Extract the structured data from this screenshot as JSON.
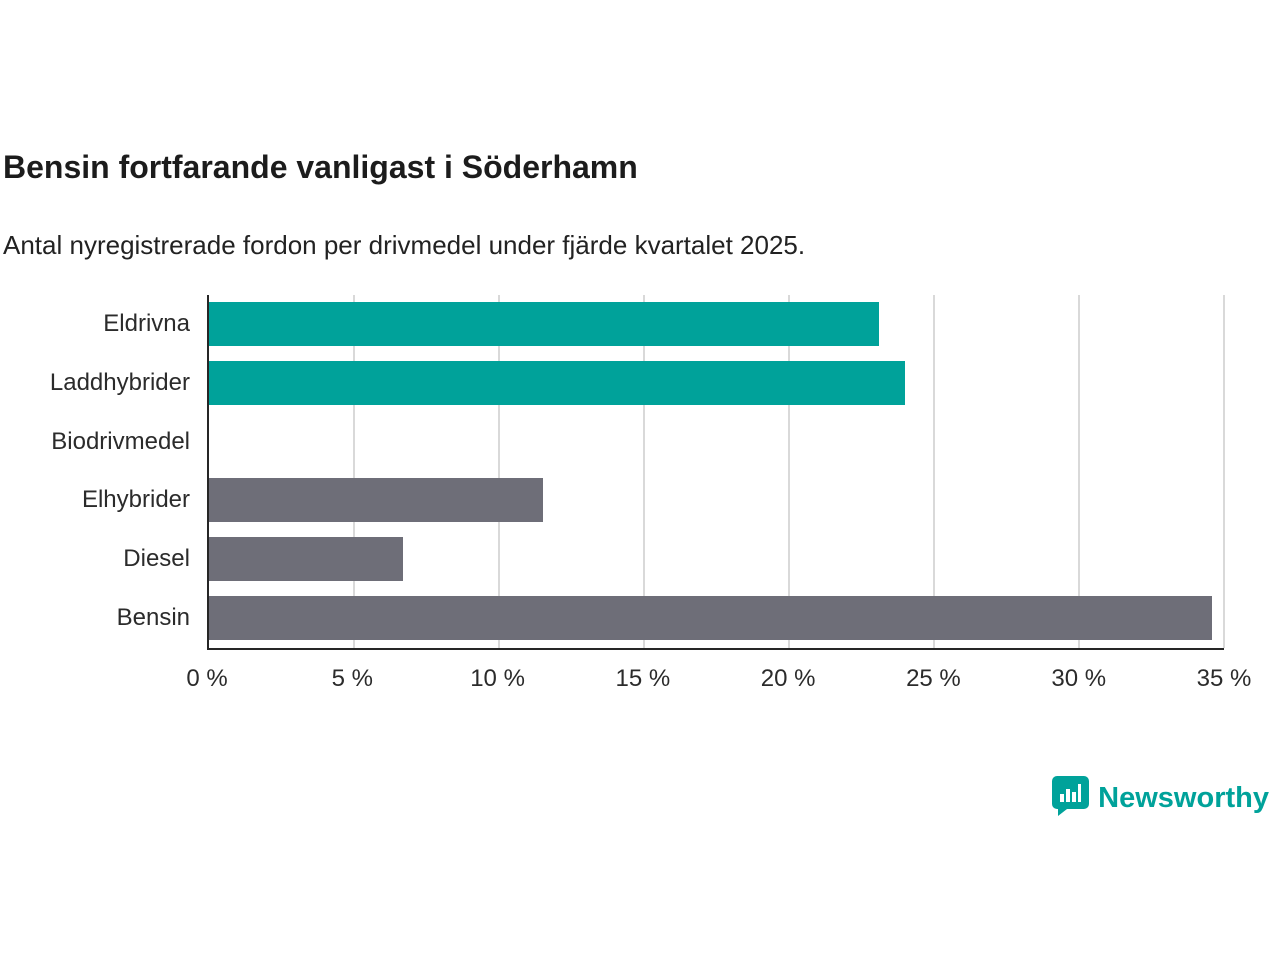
{
  "title": "Bensin fortfarande vanligast i Söderhamn",
  "subtitle": "Antal nyregistrerade fordon per drivmedel under fjärde kvartalet 2025.",
  "brand": {
    "name": "Newsworthy",
    "color": "#00a29a"
  },
  "chart_data": {
    "type": "bar",
    "orientation": "horizontal",
    "title": "Bensin fortfarande vanligast i Söderhamn",
    "subtitle": "Antal nyregistrerade fordon per drivmedel under fjärde kvartalet 2025.",
    "categories": [
      "Eldrivna",
      "Laddhybrider",
      "Biodrivmedel",
      "Elhybrider",
      "Diesel",
      "Bensin"
    ],
    "values": [
      23.1,
      24.0,
      0,
      11.5,
      6.7,
      34.6
    ],
    "unit": "%",
    "bar_colors": [
      "#00a29a",
      "#00a29a",
      "#6e6e78",
      "#6e6e78",
      "#6e6e78",
      "#6e6e78"
    ],
    "xlabel": "",
    "ylabel": "",
    "xlim": [
      0,
      35
    ],
    "x_ticks": [
      0,
      5,
      10,
      15,
      20,
      25,
      30,
      35
    ],
    "x_tick_labels": [
      "0 %",
      "5 %",
      "10 %",
      "15 %",
      "20 %",
      "25 %",
      "30 %",
      "35 %"
    ],
    "grid": true,
    "legend": false,
    "colors": {
      "grid": "#d9d9d9",
      "axis": "#262626"
    }
  }
}
